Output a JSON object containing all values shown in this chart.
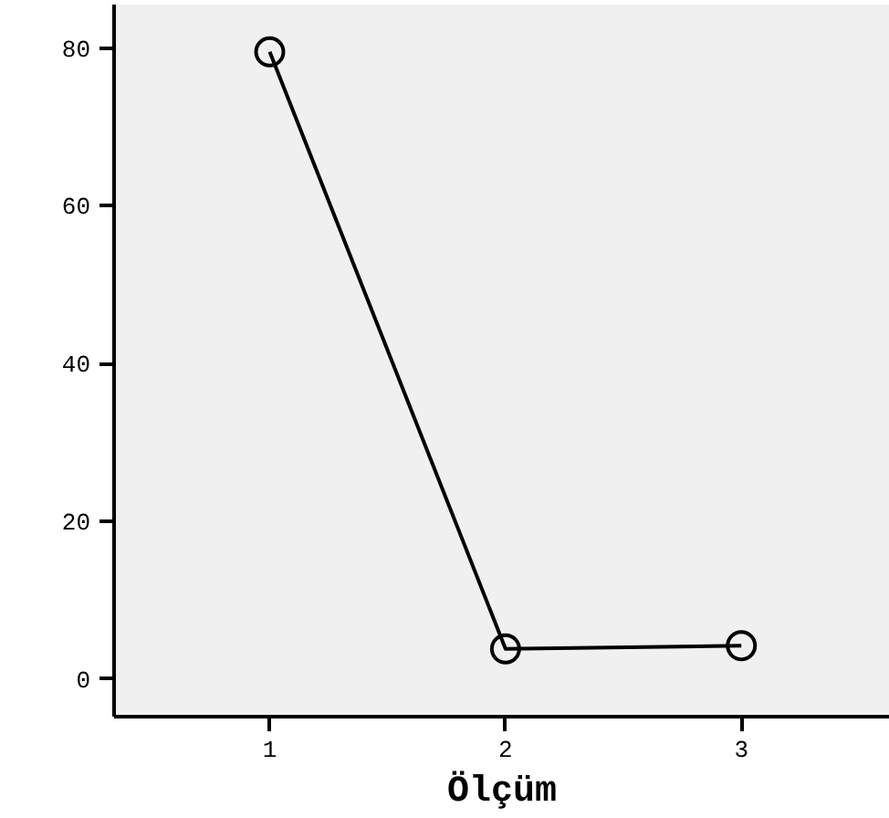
{
  "chart_data": {
    "type": "line",
    "xlabel": "Ölçüm",
    "categories": [
      "1",
      "2",
      "3"
    ],
    "series": [
      {
        "color": "#000000",
        "values": [
          79.5,
          3.8,
          4.2
        ]
      }
    ],
    "ylim": [
      -4.8,
      85.5
    ],
    "yticks": [
      0,
      20,
      40,
      60,
      80
    ],
    "marker": "circle",
    "line_style": "solid",
    "grid": false
  }
}
